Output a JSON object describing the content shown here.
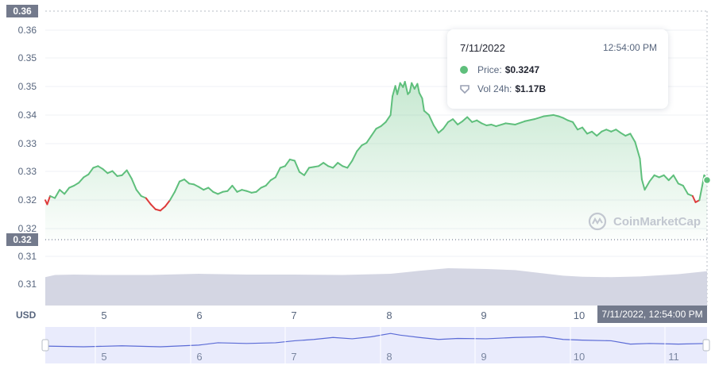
{
  "chart_data": {
    "type": "area",
    "y_ticks": [
      "0.36",
      "0.35",
      "0.35",
      "0.34",
      "0.33",
      "0.33",
      "0.32",
      "0.32",
      "0.31",
      "0.31"
    ],
    "x_ticks": [
      "5",
      "6",
      "7",
      "8",
      "9",
      "10"
    ],
    "nav_ticks": [
      "5",
      "6",
      "7",
      "8",
      "9",
      "10",
      "11"
    ],
    "x_range": [
      4.4,
      11.3
    ],
    "y_range": [
      0.3085,
      0.3635
    ],
    "reference_price": 0.3185,
    "price_series": [
      [
        4.4,
        0.318
      ],
      [
        4.42,
        0.317
      ],
      [
        4.45,
        0.319
      ],
      [
        4.5,
        0.3185
      ],
      [
        4.55,
        0.3205
      ],
      [
        4.6,
        0.3195
      ],
      [
        4.65,
        0.321
      ],
      [
        4.7,
        0.3215
      ],
      [
        4.75,
        0.3222
      ],
      [
        4.8,
        0.3235
      ],
      [
        4.85,
        0.3242
      ],
      [
        4.9,
        0.3258
      ],
      [
        4.95,
        0.3262
      ],
      [
        5.0,
        0.3255
      ],
      [
        5.05,
        0.3245
      ],
      [
        5.1,
        0.325
      ],
      [
        5.15,
        0.3238
      ],
      [
        5.2,
        0.324
      ],
      [
        5.25,
        0.3252
      ],
      [
        5.3,
        0.3232
      ],
      [
        5.35,
        0.3205
      ],
      [
        5.4,
        0.319
      ],
      [
        5.45,
        0.3185
      ],
      [
        5.5,
        0.317
      ],
      [
        5.55,
        0.3158
      ],
      [
        5.6,
        0.3155
      ],
      [
        5.65,
        0.3165
      ],
      [
        5.7,
        0.318
      ],
      [
        5.75,
        0.32
      ],
      [
        5.8,
        0.3225
      ],
      [
        5.85,
        0.323
      ],
      [
        5.9,
        0.322
      ],
      [
        5.95,
        0.3218
      ],
      [
        6.0,
        0.3212
      ],
      [
        6.05,
        0.3205
      ],
      [
        6.1,
        0.321
      ],
      [
        6.15,
        0.32
      ],
      [
        6.2,
        0.3195
      ],
      [
        6.25,
        0.32
      ],
      [
        6.3,
        0.3202
      ],
      [
        6.35,
        0.3215
      ],
      [
        6.4,
        0.32
      ],
      [
        6.45,
        0.3205
      ],
      [
        6.5,
        0.3202
      ],
      [
        6.55,
        0.3198
      ],
      [
        6.6,
        0.32
      ],
      [
        6.65,
        0.321
      ],
      [
        6.7,
        0.3215
      ],
      [
        6.75,
        0.3228
      ],
      [
        6.8,
        0.3235
      ],
      [
        6.85,
        0.3258
      ],
      [
        6.9,
        0.3262
      ],
      [
        6.95,
        0.3278
      ],
      [
        7.0,
        0.3275
      ],
      [
        7.05,
        0.3248
      ],
      [
        7.1,
        0.324
      ],
      [
        7.15,
        0.3258
      ],
      [
        7.2,
        0.326
      ],
      [
        7.25,
        0.3262
      ],
      [
        7.3,
        0.327
      ],
      [
        7.35,
        0.3262
      ],
      [
        7.4,
        0.3258
      ],
      [
        7.45,
        0.327
      ],
      [
        7.5,
        0.3262
      ],
      [
        7.55,
        0.3258
      ],
      [
        7.6,
        0.3275
      ],
      [
        7.65,
        0.3298
      ],
      [
        7.7,
        0.3312
      ],
      [
        7.75,
        0.3318
      ],
      [
        7.8,
        0.3335
      ],
      [
        7.85,
        0.3352
      ],
      [
        7.9,
        0.3358
      ],
      [
        7.95,
        0.3368
      ],
      [
        8.0,
        0.3385
      ],
      [
        8.02,
        0.343
      ],
      [
        8.05,
        0.3455
      ],
      [
        8.07,
        0.3435
      ],
      [
        8.1,
        0.3462
      ],
      [
        8.13,
        0.3452
      ],
      [
        8.15,
        0.3465
      ],
      [
        8.18,
        0.3435
      ],
      [
        8.2,
        0.344
      ],
      [
        8.22,
        0.3462
      ],
      [
        8.25,
        0.3448
      ],
      [
        8.28,
        0.346
      ],
      [
        8.3,
        0.3438
      ],
      [
        8.33,
        0.3425
      ],
      [
        8.35,
        0.3395
      ],
      [
        8.4,
        0.3385
      ],
      [
        8.45,
        0.336
      ],
      [
        8.5,
        0.3342
      ],
      [
        8.55,
        0.3352
      ],
      [
        8.6,
        0.3368
      ],
      [
        8.65,
        0.3375
      ],
      [
        8.7,
        0.3362
      ],
      [
        8.75,
        0.337
      ],
      [
        8.8,
        0.338
      ],
      [
        8.85,
        0.3368
      ],
      [
        8.9,
        0.3372
      ],
      [
        8.95,
        0.3365
      ],
      [
        9.0,
        0.336
      ],
      [
        9.05,
        0.3362
      ],
      [
        9.1,
        0.3358
      ],
      [
        9.2,
        0.3365
      ],
      [
        9.3,
        0.3362
      ],
      [
        9.4,
        0.337
      ],
      [
        9.5,
        0.3375
      ],
      [
        9.6,
        0.3382
      ],
      [
        9.7,
        0.3385
      ],
      [
        9.75,
        0.3382
      ],
      [
        9.8,
        0.3378
      ],
      [
        9.85,
        0.3372
      ],
      [
        9.9,
        0.3368
      ],
      [
        9.95,
        0.335
      ],
      [
        10.0,
        0.3355
      ],
      [
        10.05,
        0.334
      ],
      [
        10.1,
        0.3345
      ],
      [
        10.15,
        0.3335
      ],
      [
        10.2,
        0.3345
      ],
      [
        10.25,
        0.335
      ],
      [
        10.3,
        0.3345
      ],
      [
        10.35,
        0.335
      ],
      [
        10.4,
        0.3342
      ],
      [
        10.45,
        0.3335
      ],
      [
        10.5,
        0.334
      ],
      [
        10.55,
        0.332
      ],
      [
        10.6,
        0.328
      ],
      [
        10.62,
        0.323
      ],
      [
        10.65,
        0.3205
      ],
      [
        10.7,
        0.3225
      ],
      [
        10.75,
        0.324
      ],
      [
        10.8,
        0.3235
      ],
      [
        10.85,
        0.324
      ],
      [
        10.9,
        0.3228
      ],
      [
        10.95,
        0.324
      ],
      [
        11.0,
        0.322
      ],
      [
        11.05,
        0.3215
      ],
      [
        11.1,
        0.3195
      ],
      [
        11.15,
        0.319
      ],
      [
        11.18,
        0.3175
      ],
      [
        11.22,
        0.318
      ],
      [
        11.25,
        0.3215
      ],
      [
        11.27,
        0.324
      ],
      [
        11.3,
        0.3232
      ]
    ],
    "volume_level": [
      [
        4.4,
        0.76
      ],
      [
        4.5,
        0.82
      ],
      [
        4.7,
        0.83
      ],
      [
        5.0,
        0.82
      ],
      [
        5.5,
        0.82
      ],
      [
        6.0,
        0.85
      ],
      [
        6.5,
        0.83
      ],
      [
        7.0,
        0.83
      ],
      [
        7.5,
        0.82
      ],
      [
        8.0,
        0.85
      ],
      [
        8.3,
        0.93
      ],
      [
        8.6,
        1.0
      ],
      [
        9.0,
        0.98
      ],
      [
        9.3,
        0.95
      ],
      [
        9.6,
        0.86
      ],
      [
        9.8,
        0.8
      ],
      [
        10.0,
        0.77
      ],
      [
        10.3,
        0.76
      ],
      [
        10.6,
        0.78
      ],
      [
        11.0,
        0.84
      ],
      [
        11.3,
        0.92
      ]
    ],
    "navigator_series": [
      [
        4.4,
        0.52
      ],
      [
        4.8,
        0.5
      ],
      [
        5.2,
        0.53
      ],
      [
        5.6,
        0.5
      ],
      [
        6.0,
        0.55
      ],
      [
        6.2,
        0.62
      ],
      [
        6.5,
        0.6
      ],
      [
        6.8,
        0.62
      ],
      [
        7.0,
        0.68
      ],
      [
        7.2,
        0.72
      ],
      [
        7.4,
        0.78
      ],
      [
        7.6,
        0.74
      ],
      [
        7.8,
        0.8
      ],
      [
        8.0,
        0.9
      ],
      [
        8.1,
        0.85
      ],
      [
        8.3,
        0.78
      ],
      [
        8.5,
        0.72
      ],
      [
        8.7,
        0.75
      ],
      [
        9.0,
        0.74
      ],
      [
        9.3,
        0.78
      ],
      [
        9.6,
        0.8
      ],
      [
        9.8,
        0.72
      ],
      [
        10.0,
        0.7
      ],
      [
        10.3,
        0.68
      ],
      [
        10.5,
        0.58
      ],
      [
        10.7,
        0.6
      ],
      [
        11.0,
        0.58
      ],
      [
        11.3,
        0.6
      ]
    ],
    "selection_range": [
      4.4,
      11.3
    ]
  },
  "labels": {
    "current_price_flag": "0.32",
    "top_flag": "0.36",
    "usd": "USD",
    "time_flag": "7/11/2022, 12:54:00 PM",
    "watermark": "CoinMarketCap"
  },
  "tooltip": {
    "date": "7/11/2022",
    "time": "12:54:00 PM",
    "price_label": "Price:",
    "price_value": "$0.3247",
    "vol_label": "Vol 24h:",
    "vol_value": "$1.17B"
  },
  "colors": {
    "up": "#5fbf7c",
    "down": "#de3b3b",
    "volume": "#cfd2e0",
    "navigator_fill": "#e9ebfc",
    "navigator_line": "#5b6bd6",
    "flag": "#737a8c"
  }
}
